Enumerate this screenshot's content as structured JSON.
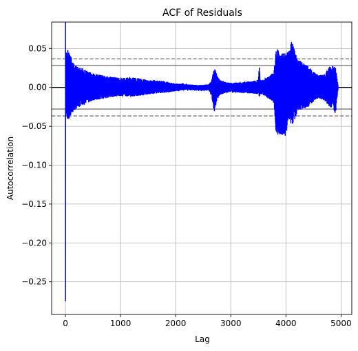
{
  "chart_data": {
    "type": "line",
    "title": "ACF of Residuals",
    "xlabel": "Lag",
    "ylabel": "Autocorrelation",
    "xlim": [
      -250,
      5195
    ],
    "ylim": [
      -0.292,
      0.084
    ],
    "xticks": [
      0,
      1000,
      2000,
      3000,
      4000,
      5000
    ],
    "xtick_labels": [
      "0",
      "1000",
      "2000",
      "3000",
      "4000",
      "5000"
    ],
    "yticks": [
      0.05,
      0.0,
      -0.05,
      -0.1,
      -0.15,
      -0.2,
      -0.25
    ],
    "ytick_labels": [
      "0.05",
      "0.00",
      "−0.05",
      "−0.10",
      "−0.15",
      "−0.20",
      "−0.25"
    ],
    "grid": true,
    "reference_lines": [
      {
        "y": 0.0,
        "style": "solid",
        "color": "#000000"
      },
      {
        "y": 0.0279,
        "style": "solid",
        "color": "#808080"
      },
      {
        "y": -0.0279,
        "style": "solid",
        "color": "#808080"
      },
      {
        "y": 0.0367,
        "style": "dashed",
        "color": "#808080"
      },
      {
        "y": -0.0367,
        "style": "dashed",
        "color": "#808080"
      }
    ],
    "series": [
      {
        "color": "#0000ff",
        "lag_max": 4945,
        "envelope": {
          "x": [
            0,
            2,
            5,
            20,
            50,
            100,
            150,
            200,
            300,
            500,
            800,
            1000,
            1200,
            1500,
            1800,
            2000,
            2200,
            2400,
            2600,
            2650,
            2700,
            2750,
            2800,
            2900,
            3000,
            3200,
            3400,
            3500,
            3520,
            3530,
            3600,
            3700,
            3780,
            3820,
            3850,
            3900,
            3950,
            4000,
            4050,
            4100,
            4150,
            4200,
            4300,
            4400,
            4500,
            4600,
            4700,
            4800,
            4850,
            4900,
            4945
          ],
          "upper": [
            1.0,
            0.002,
            0.044,
            0.046,
            0.05,
            0.041,
            0.03,
            0.028,
            0.025,
            0.018,
            0.014,
            0.012,
            0.013,
            0.01,
            0.008,
            0.005,
            0.004,
            0.003,
            0.004,
            0.008,
            0.026,
            0.016,
            0.01,
            0.007,
            0.006,
            0.007,
            0.008,
            0.01,
            0.03,
            0.01,
            0.01,
            0.015,
            0.02,
            0.048,
            0.05,
            0.042,
            0.047,
            0.045,
            0.047,
            0.06,
            0.05,
            0.038,
            0.032,
            0.028,
            0.02,
            0.016,
            0.018,
            0.027,
            0.03,
            0.025,
            0.003
          ],
          "lower": [
            1.0,
            -0.275,
            -0.035,
            -0.038,
            -0.042,
            -0.037,
            -0.03,
            -0.028,
            -0.023,
            -0.017,
            -0.013,
            -0.011,
            -0.012,
            -0.009,
            -0.007,
            -0.005,
            -0.003,
            -0.004,
            -0.004,
            -0.01,
            -0.033,
            -0.016,
            -0.01,
            -0.007,
            -0.006,
            -0.007,
            -0.008,
            -0.009,
            -0.012,
            -0.009,
            -0.01,
            -0.015,
            -0.02,
            -0.06,
            -0.068,
            -0.06,
            -0.065,
            -0.063,
            -0.04,
            -0.05,
            -0.045,
            -0.032,
            -0.028,
            -0.025,
            -0.018,
            -0.014,
            -0.017,
            -0.026,
            -0.028,
            -0.034,
            -0.003
          ]
        }
      }
    ]
  }
}
